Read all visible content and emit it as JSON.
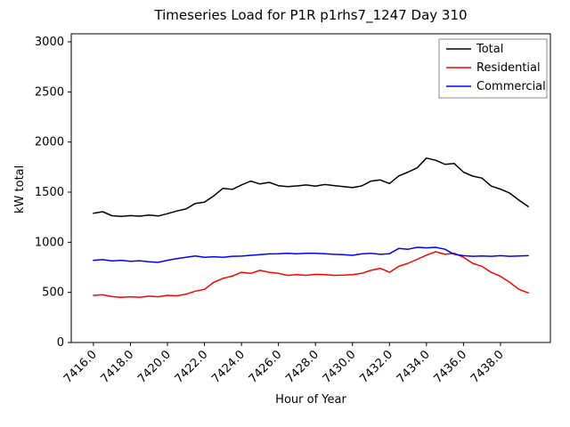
{
  "chart_data": {
    "type": "line",
    "title": "Timeseries Load for P1R p1rhs7_1247  Day 310",
    "xlabel": "Hour of Year",
    "ylabel": "kW total",
    "xlim": [
      7414.8,
      7440.7
    ],
    "ylim": [
      0,
      3080
    ],
    "grid": false,
    "legend_position": "upper right",
    "xticks": [
      7416,
      7418,
      7420,
      7422,
      7424,
      7426,
      7428,
      7430,
      7432,
      7434,
      7436,
      7438
    ],
    "xtick_labels": [
      "7416.0",
      "7418.0",
      "7420.0",
      "7422.0",
      "7424.0",
      "7426.0",
      "7428.0",
      "7430.0",
      "7432.0",
      "7434.0",
      "7436.0",
      "7438.0"
    ],
    "yticks": [
      0,
      500,
      1000,
      1500,
      2000,
      2500,
      3000
    ],
    "ytick_labels": [
      "0",
      "500",
      "1000",
      "1500",
      "2000",
      "2500",
      "3000"
    ],
    "x": [
      7416.0,
      7416.5,
      7417.0,
      7417.5,
      7418.0,
      7418.5,
      7419.0,
      7419.5,
      7420.0,
      7420.5,
      7421.0,
      7421.5,
      7422.0,
      7422.5,
      7423.0,
      7423.5,
      7424.0,
      7424.5,
      7425.0,
      7425.5,
      7426.0,
      7426.5,
      7427.0,
      7427.5,
      7428.0,
      7428.5,
      7429.0,
      7429.5,
      7430.0,
      7430.5,
      7431.0,
      7431.5,
      7432.0,
      7432.5,
      7433.0,
      7433.5,
      7434.0,
      7434.5,
      7435.0,
      7435.5,
      7436.0,
      7436.5,
      7437.0,
      7437.5,
      7438.0,
      7438.5,
      7439.0,
      7439.5
    ],
    "series": [
      {
        "name": "Total",
        "color": "#000000",
        "values": [
          1290,
          1305,
          1265,
          1258,
          1266,
          1260,
          1272,
          1262,
          1285,
          1312,
          1332,
          1386,
          1400,
          1462,
          1538,
          1528,
          1572,
          1610,
          1582,
          1598,
          1565,
          1556,
          1562,
          1572,
          1560,
          1576,
          1566,
          1556,
          1545,
          1562,
          1610,
          1622,
          1586,
          1662,
          1700,
          1742,
          1840,
          1818,
          1778,
          1786,
          1700,
          1660,
          1640,
          1560,
          1530,
          1490,
          1420,
          1355
        ]
      },
      {
        "name": "Residential",
        "color": "#ff0000",
        "values": [
          470,
          476,
          458,
          450,
          456,
          450,
          462,
          456,
          470,
          466,
          482,
          512,
          530,
          600,
          640,
          662,
          700,
          690,
          720,
          700,
          690,
          670,
          676,
          670,
          680,
          676,
          670,
          672,
          676,
          690,
          720,
          740,
          700,
          760,
          790,
          830,
          872,
          905,
          880,
          890,
          850,
          790,
          760,
          700,
          660,
          600,
          530,
          495
        ]
      },
      {
        "name": "Commercial",
        "color": "#0000ff",
        "values": [
          820,
          826,
          814,
          820,
          810,
          816,
          806,
          800,
          820,
          836,
          850,
          864,
          850,
          856,
          850,
          860,
          862,
          870,
          876,
          884,
          886,
          890,
          886,
          890,
          890,
          886,
          880,
          876,
          870,
          884,
          890,
          880,
          886,
          938,
          930,
          950,
          944,
          950,
          930,
          880,
          866,
          860,
          864,
          860,
          866,
          860,
          864,
          866
        ]
      }
    ]
  }
}
